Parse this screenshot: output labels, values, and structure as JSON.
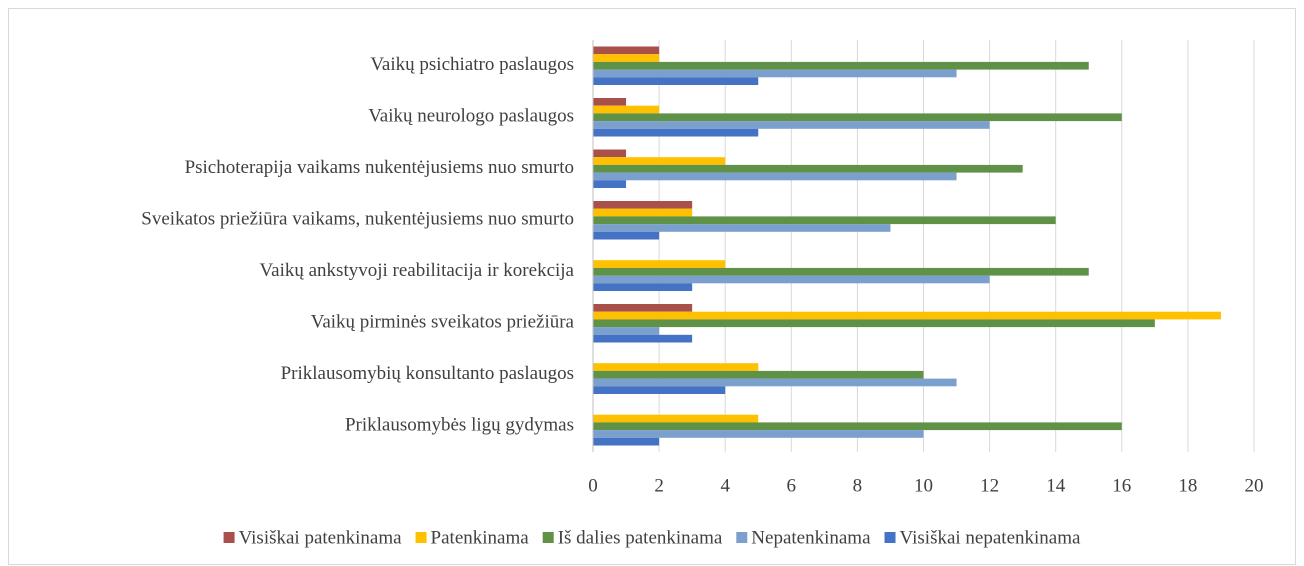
{
  "chart_data": {
    "type": "bar",
    "orientation": "horizontal",
    "categories": [
      "Vaikų psichiatro paslaugos",
      "Vaikų neurologo paslaugos",
      "Psichoterapija vaikams nukentėjusiems nuo smurto",
      "Sveikatos priežiūra vaikams, nukentėjusiems nuo smurto",
      "Vaikų ankstyvoji reabilitacija ir korekcija",
      "Vaikų pirminės sveikatos priežiūra",
      "Priklausomybių konsultanto paslaugos",
      "Priklausomybės ligų gydymas"
    ],
    "series": [
      {
        "name": "Visiškai patenkinama",
        "color": "#a9504a",
        "values": [
          2,
          1,
          1,
          3,
          0,
          3,
          0,
          0
        ]
      },
      {
        "name": "Patenkinama",
        "color": "#ffc000",
        "values": [
          2,
          2,
          4,
          3,
          4,
          19,
          5,
          5
        ]
      },
      {
        "name": "Iš dalies patenkinama",
        "color": "#5f9146",
        "values": [
          15,
          16,
          13,
          14,
          15,
          17,
          10,
          16
        ]
      },
      {
        "name": "Nepatenkinama",
        "color": "#7ba0cd",
        "values": [
          11,
          12,
          11,
          9,
          12,
          2,
          11,
          10
        ]
      },
      {
        "name": "Visiškai nepatenkinama",
        "color": "#4472c4",
        "values": [
          5,
          5,
          1,
          2,
          3,
          3,
          4,
          2
        ]
      }
    ],
    "xlim": [
      0,
      20
    ],
    "xticks": [
      0,
      2,
      4,
      6,
      8,
      10,
      12,
      14,
      16,
      18,
      20
    ],
    "grid": true,
    "legend": "bottom"
  }
}
